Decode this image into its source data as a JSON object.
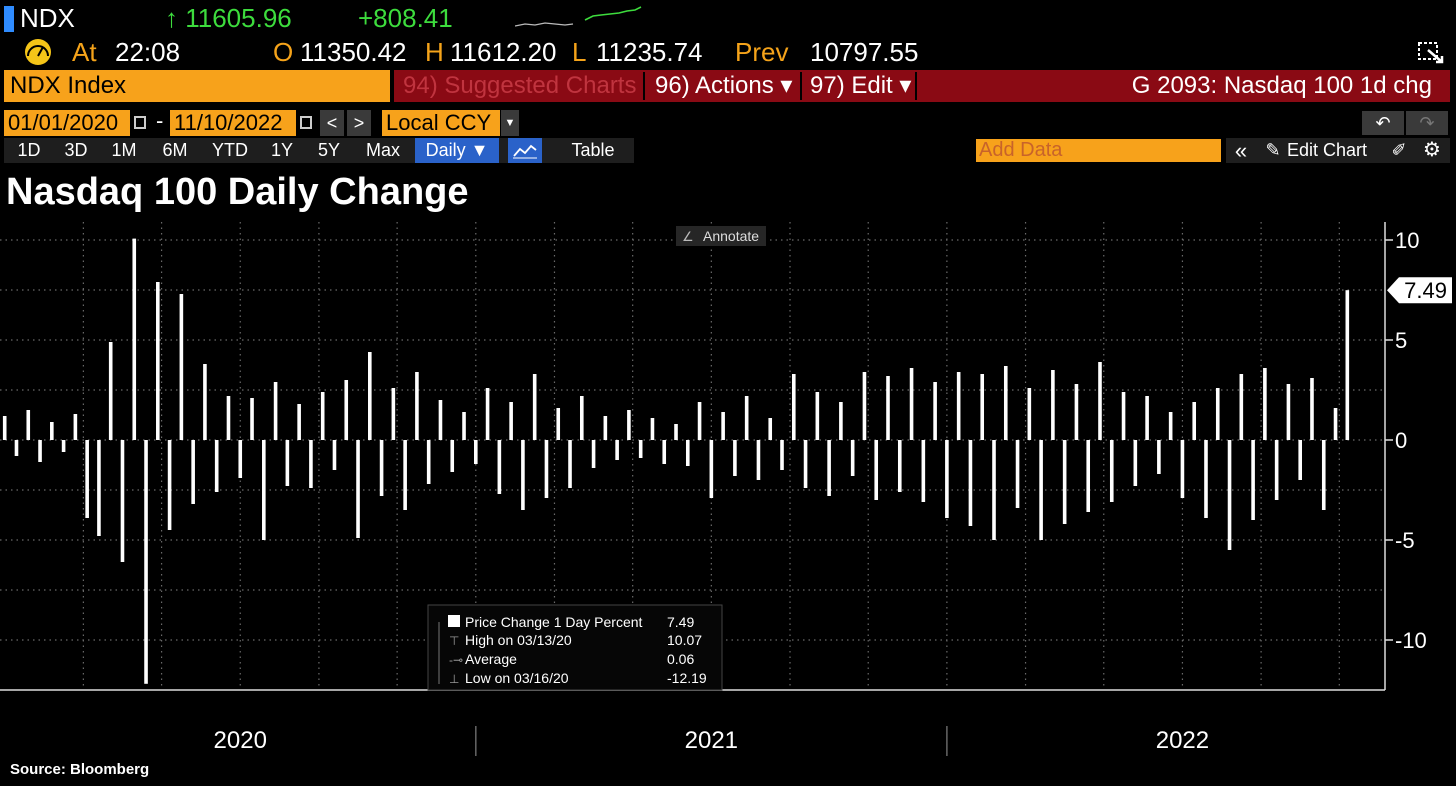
{
  "header": {
    "ticker": "NDX",
    "last": "↑ 11605.96",
    "change": "+808.41",
    "time_label": "At",
    "time": "22:08",
    "open_label": "O",
    "open": "11350.42",
    "high_label": "H",
    "high": "11612.20",
    "low_label": "L",
    "low": "11235.74",
    "prev_label": "Prev",
    "prev": "10797.55"
  },
  "toolbar": {
    "security": "NDX Index",
    "suggested": "94) Suggested Charts",
    "actions": "96) Actions ▾",
    "edit": "97) Edit ▾",
    "chart_code": "G 2093: Nasdaq 100 1d chg"
  },
  "controls": {
    "start_date": "01/01/2020",
    "separator": "-",
    "end_date": "11/10/2022",
    "currency": "Local CCY",
    "periods": [
      "1D",
      "3D",
      "1M",
      "6M",
      "YTD",
      "1Y",
      "5Y",
      "Max"
    ],
    "frequency": "Daily ▼",
    "table": "Table",
    "add_data": "Add Data",
    "edit_chart": "Edit Chart"
  },
  "chart_data": {
    "type": "bar",
    "title": "Nasdaq 100 Daily Change",
    "annotate": "Annotate",
    "source": "Source: Bloomberg",
    "x": [
      2020,
      2020.025,
      2020.05,
      2020.075,
      2020.1,
      2020.125,
      2020.15,
      2020.175,
      2020.2,
      2020.225,
      2020.25,
      2020.275,
      2020.3,
      2020.325,
      2020.35,
      2020.375,
      2020.4,
      2020.425,
      2020.45,
      2020.475,
      2020.5,
      2020.525,
      2020.55,
      2020.575,
      2020.6,
      2020.625,
      2020.65,
      2020.675,
      2020.7,
      2020.725,
      2020.75,
      2020.775,
      2020.8,
      2020.825,
      2020.85,
      2020.875,
      2020.9,
      2020.925,
      2020.95,
      2020.975,
      2021,
      2021.025,
      2021.05,
      2021.075,
      2021.1,
      2021.125,
      2021.15,
      2021.175,
      2021.2,
      2021.225,
      2021.25,
      2021.275,
      2021.3,
      2021.325,
      2021.35,
      2021.375,
      2021.4,
      2021.425,
      2021.45,
      2021.475,
      2021.5,
      2021.525,
      2021.55,
      2021.575,
      2021.6,
      2021.625,
      2021.65,
      2021.675,
      2021.7,
      2021.725,
      2021.75,
      2021.775,
      2021.8,
      2021.825,
      2021.85,
      2021.875,
      2021.9,
      2021.925,
      2021.95,
      2021.975,
      2022,
      2022.025,
      2022.05,
      2022.075,
      2022.1,
      2022.125,
      2022.15,
      2022.175,
      2022.2,
      2022.225,
      2022.25,
      2022.275,
      2022.3,
      2022.325,
      2022.35,
      2022.375,
      2022.4,
      2022.425,
      2022.45,
      2022.475,
      2022.5,
      2022.525,
      2022.55,
      2022.575,
      2022.6,
      2022.625,
      2022.65,
      2022.675,
      2022.7,
      2022.725,
      2022.75,
      2022.775,
      2022.8,
      2022.825,
      2022.85
    ],
    "series": [
      {
        "name": "Price Change 1 Day Percent",
        "color": "#ffffff",
        "values": [
          1.2,
          -0.8,
          1.5,
          -1.1,
          0.9,
          -0.6,
          1.3,
          -3.9,
          -4.8,
          4.9,
          -6.1,
          10.07,
          -12.19,
          7.9,
          -4.5,
          7.3,
          -3.2,
          3.8,
          -2.6,
          2.2,
          -1.9,
          2.1,
          -5.0,
          2.9,
          -2.3,
          1.8,
          -2.4,
          2.4,
          -1.5,
          3.0,
          -4.9,
          4.4,
          -2.8,
          2.6,
          -3.5,
          3.4,
          -2.2,
          2.0,
          -1.6,
          1.4,
          -1.2,
          2.6,
          -2.7,
          1.9,
          -3.5,
          3.3,
          -2.9,
          1.6,
          -2.4,
          2.2,
          -1.4,
          1.2,
          -1.0,
          1.5,
          -0.9,
          1.1,
          -1.2,
          0.8,
          -1.3,
          1.9,
          -2.9,
          1.4,
          -1.8,
          2.2,
          -2.0,
          1.1,
          -1.5,
          3.3,
          -2.4,
          2.4,
          -2.8,
          1.9,
          -1.8,
          3.4,
          -3.0,
          3.2,
          -2.6,
          3.6,
          -3.1,
          2.9,
          -3.9,
          3.4,
          -4.3,
          3.3,
          -5.0,
          3.7,
          -3.4,
          2.6,
          -5.0,
          3.5,
          -4.2,
          2.8,
          -3.6,
          3.9,
          -3.1,
          2.4,
          -2.3,
          2.2,
          -1.7,
          1.4,
          -2.9,
          1.9,
          -3.9,
          2.6,
          -5.5,
          3.3,
          -4.0,
          3.6,
          -3.0,
          2.8,
          -2.0,
          3.1,
          -3.5,
          1.6,
          7.49
        ]
      }
    ],
    "legend_stats": [
      {
        "label": "High on 03/13/20",
        "value": 10.07
      },
      {
        "label": "Average",
        "value": 0.06
      },
      {
        "label": "Low on 03/16/20",
        "value": -12.19
      }
    ],
    "xlim": [
      2019.99,
      2022.93
    ],
    "xticks": [
      {
        "value": 2020.5,
        "label": "2020"
      },
      {
        "value": 2021.5,
        "label": "2021"
      },
      {
        "value": 2022.5,
        "label": "2022"
      }
    ],
    "xgrid": [
      2020.167,
      2020.333,
      2020.5,
      2020.667,
      2020.833,
      2021,
      2021.167,
      2021.333,
      2021.5,
      2021.667,
      2021.833,
      2022,
      2022.167,
      2022.333,
      2022.5,
      2022.667,
      2022.833
    ],
    "year_dividers": [
      2021,
      2022
    ],
    "ylim": [
      -12.5,
      10.9
    ],
    "yticks": [
      -10,
      -5,
      0,
      5,
      10
    ],
    "minor_yticks": [
      -7.5,
      -2.5,
      2.5,
      7.5
    ],
    "grid": true
  }
}
